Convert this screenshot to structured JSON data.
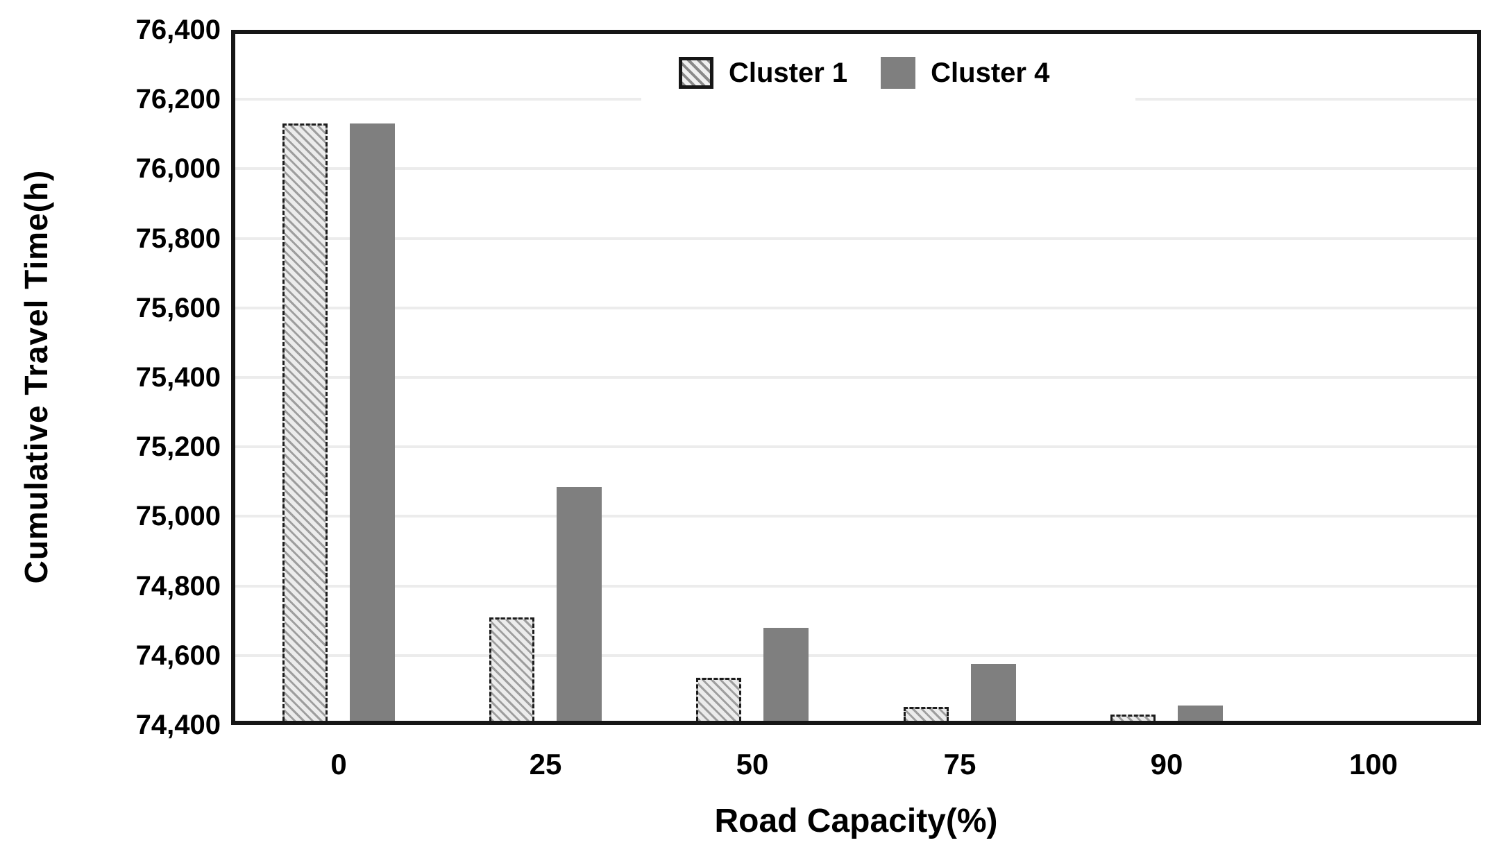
{
  "chart_data": {
    "type": "bar",
    "title": "",
    "xlabel": "Road Capacity(%)",
    "ylabel": "Cumulative Travel Time(h)",
    "categories": [
      "0",
      "25",
      "50",
      "75",
      "90",
      "100"
    ],
    "series": [
      {
        "name": "Cluster 1",
        "values": [
          76140,
          74700,
          74525,
          74440,
          74418,
          74400
        ]
      },
      {
        "name": "Cluster 4",
        "values": [
          76140,
          75080,
          74670,
          74565,
          74445,
          74400
        ]
      }
    ],
    "ylim": [
      74400,
      76400
    ],
    "ytick_step": 200,
    "ytick_labels": [
      "76,400",
      "76,200",
      "76,000",
      "75,800",
      "75,600",
      "75,400",
      "75,200",
      "75,000",
      "74,800",
      "74,600",
      "74,400"
    ],
    "grid": "horizontal",
    "legend_position": "top-center-inside",
    "colors": {
      "cluster1_pattern_stripe": "#9e9e9e",
      "cluster1_pattern_bg": "#ececec",
      "cluster1_border": "#1c1c1c",
      "cluster4_fill": "#7f7f7f",
      "gridline": "#ececec",
      "plot_border": "#161616",
      "text": "#000000"
    }
  },
  "legend": {
    "item1_label": "Cluster 1",
    "item2_label": "Cluster 4"
  },
  "axes": {
    "y_title": "Cumulative Travel Time(h)",
    "x_title": "Road Capacity(%)"
  }
}
